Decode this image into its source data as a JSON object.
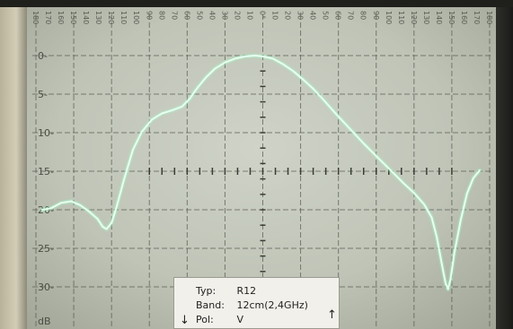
{
  "chart_data": {
    "type": "line",
    "title": "",
    "xlabel": "",
    "ylabel": "dB",
    "x_ticks": [
      -180,
      -170,
      -160,
      -150,
      -140,
      -130,
      -120,
      -110,
      -100,
      -90,
      -80,
      -70,
      -60,
      -50,
      -40,
      -30,
      -20,
      -10,
      0,
      10,
      20,
      30,
      40,
      50,
      60,
      70,
      80,
      90,
      100,
      110,
      120,
      130,
      140,
      150,
      160,
      170,
      180
    ],
    "x_tick_labels": [
      "180",
      "170",
      "160",
      "150",
      "140",
      "130",
      "120",
      "110",
      "100",
      "90",
      "80",
      "70",
      "60",
      "50",
      "40",
      "30",
      "20",
      "10",
      "0°",
      "10",
      "20",
      "30",
      "40",
      "50",
      "60",
      "70",
      "80",
      "90",
      "100",
      "110",
      "120",
      "130",
      "140",
      "150",
      "160",
      "170",
      "180"
    ],
    "y_ticks": [
      0,
      5,
      10,
      15,
      20,
      25,
      30
    ],
    "y_tick_labels": [
      "0-",
      "5-",
      "10-",
      "15-",
      "20-",
      "25-",
      "30-"
    ],
    "xlim": [
      -180,
      180
    ],
    "ylim": [
      0,
      33
    ],
    "y_inverted": true,
    "grid": true,
    "series": [
      {
        "color": "#e8fff2",
        "x": [
          -175,
          -168,
          -160,
          -152,
          -145,
          -138,
          -131,
          -127,
          -124,
          -120,
          -116,
          -110,
          -103,
          -96,
          -88,
          -80,
          -72,
          -64,
          -58,
          -52,
          -45,
          -38,
          -30,
          -22,
          -14,
          -6,
          0,
          8,
          16,
          24,
          32,
          40,
          48,
          56,
          64,
          72,
          80,
          88,
          96,
          104,
          112,
          120,
          128,
          134,
          138,
          142,
          145,
          147,
          149,
          152,
          157,
          162,
          167,
          172
        ],
        "y": [
          20.0,
          19.8,
          19.1,
          18.9,
          19.4,
          20.2,
          21.2,
          22.2,
          22.5,
          21.7,
          19.6,
          16.0,
          12.2,
          9.9,
          8.3,
          7.5,
          7.1,
          6.6,
          5.6,
          4.2,
          2.8,
          1.7,
          0.9,
          0.4,
          0.1,
          0.0,
          0.1,
          0.4,
          1.1,
          2.0,
          3.1,
          4.3,
          5.7,
          7.2,
          8.6,
          10.0,
          11.4,
          12.7,
          14.0,
          15.3,
          16.6,
          17.8,
          19.3,
          21.0,
          23.5,
          27.0,
          29.5,
          30.3,
          29.0,
          25.6,
          21.4,
          17.9,
          15.9,
          14.9
        ]
      }
    ]
  },
  "legend_card": {
    "typ_key": "Typ:",
    "typ_value": "R12",
    "band_key": "Band:",
    "band_value": "12cm(2,4GHz)",
    "pol_key": "Pol:",
    "pol_value": "V"
  },
  "axis_unit_label": "dB",
  "arrows": {
    "down": "↓",
    "up": "↑"
  }
}
